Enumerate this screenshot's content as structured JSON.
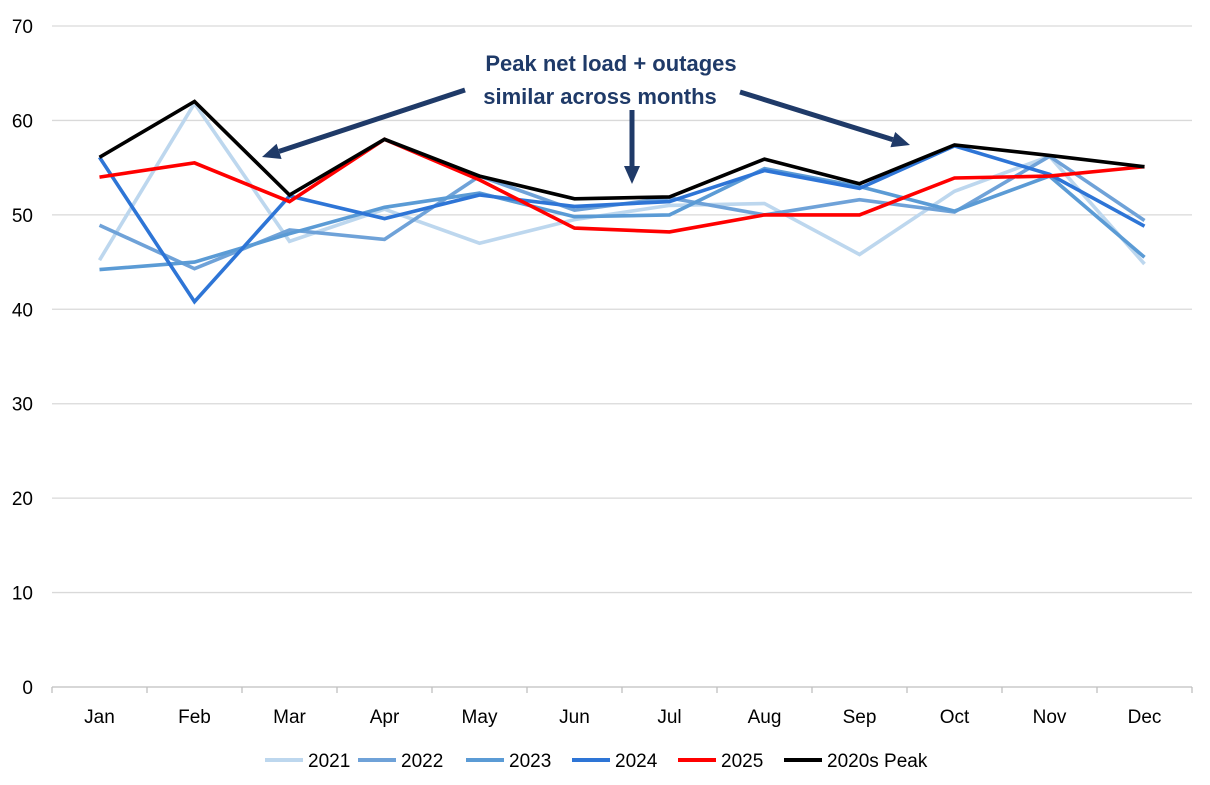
{
  "chart_data": {
    "type": "line",
    "title": "",
    "xlabel": "",
    "ylabel": "",
    "categories": [
      "Jan",
      "Feb",
      "Mar",
      "Apr",
      "May",
      "Jun",
      "Jul",
      "Aug",
      "Sep",
      "Oct",
      "Nov",
      "Dec"
    ],
    "ylim": [
      0,
      70
    ],
    "yticks": [
      "0",
      "10",
      "20",
      "30",
      "40",
      "50",
      "60",
      "70"
    ],
    "grid": "horizontal",
    "legend_position": "bottom",
    "series": [
      {
        "name": "2021",
        "color": "#bdd7ee",
        "values": [
          45.2,
          61.8,
          47.2,
          50.6,
          47.0,
          49.5,
          51.0,
          51.2,
          45.8,
          52.5,
          56.2,
          44.8
        ]
      },
      {
        "name": "2022",
        "color": "#6fa2d8",
        "values": [
          48.9,
          44.3,
          48.4,
          47.4,
          54.1,
          50.5,
          51.8,
          50.0,
          51.6,
          50.3,
          56.2,
          49.4
        ]
      },
      {
        "name": "2023",
        "color": "#5b9bd5",
        "values": [
          44.2,
          45.0,
          48.0,
          50.8,
          52.3,
          49.8,
          50.0,
          54.9,
          53.0,
          50.4,
          54.1,
          45.5
        ]
      },
      {
        "name": "2024",
        "color": "#2e75d6",
        "values": [
          56.1,
          40.8,
          52.0,
          49.6,
          52.1,
          50.9,
          51.4,
          54.7,
          52.8,
          57.3,
          54.3,
          48.8
        ]
      },
      {
        "name": "2025",
        "color": "#ff0000",
        "values": [
          54.0,
          55.5,
          51.4,
          58.0,
          53.7,
          48.6,
          48.2,
          50.0,
          50.0,
          53.9,
          54.1,
          55.1
        ]
      },
      {
        "name": "2020s Peak",
        "color": "#000000",
        "values": [
          56.1,
          62.0,
          52.1,
          58.0,
          54.1,
          51.7,
          51.9,
          55.9,
          53.3,
          57.4,
          56.3,
          55.1
        ]
      }
    ],
    "annotation": {
      "lines": [
        "Peak net load + outages",
        "similar across months"
      ],
      "color": "#1f3a68"
    }
  }
}
